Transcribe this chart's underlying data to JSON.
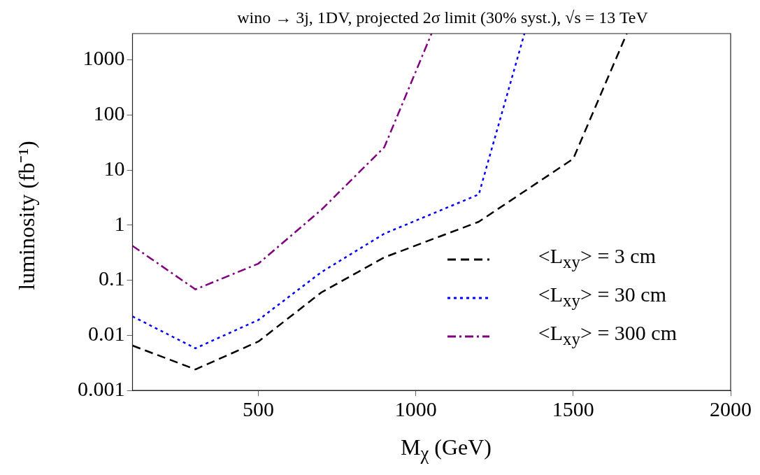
{
  "chart_data": {
    "type": "line",
    "title": "wino → 3j, 1DV, projected 2σ limit (30% syst.), √s = 13 TeV",
    "xlabel": "M$_{χ}$ (GeV)",
    "ylabel": "luminosity (fb⁻¹)",
    "log": "y",
    "grid": false,
    "legend": "bottom right",
    "marker": "none",
    "xlim": [
      100,
      2000
    ],
    "xticks": [
      500,
      1000,
      1500,
      2000
    ],
    "ylim": [
      0.001,
      3000
    ],
    "yticks": [
      0.001,
      0.01,
      0.1,
      1,
      10,
      100,
      1000
    ],
    "series": [
      {
        "name": "<L$_{xy}$> = 3 cm",
        "color": "#000000",
        "line_style": "dashed",
        "x": [
          100,
          300,
          500,
          700,
          900,
          1200,
          1500,
          1670
        ],
        "values": [
          0.0065,
          0.0024,
          0.0077,
          0.06,
          0.26,
          1.15,
          16,
          3000
        ]
      },
      {
        "name": "<L$_{xy}$> = 30 cm",
        "color": "#0000ff",
        "line_style": "dotted",
        "x": [
          100,
          300,
          500,
          700,
          900,
          1200,
          1345
        ],
        "values": [
          0.022,
          0.0058,
          0.019,
          0.14,
          0.7,
          3.6,
          3000
        ]
      },
      {
        "name": "<L$_{xy}$> = 300 cm",
        "color": "#800080",
        "line_style": "dashdot",
        "x": [
          100,
          300,
          500,
          700,
          900,
          1050
        ],
        "values": [
          0.42,
          0.068,
          0.2,
          1.9,
          26,
          3000
        ]
      }
    ]
  }
}
